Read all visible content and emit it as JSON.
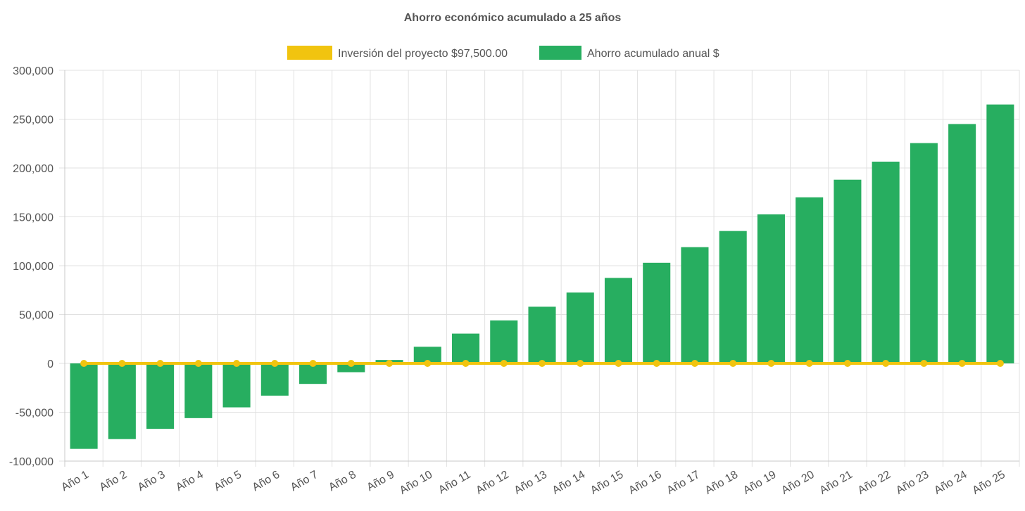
{
  "chart_data": {
    "type": "bar",
    "title": "Ahorro económico acumulado a 25 años",
    "categories": [
      "Año 1",
      "Año 2",
      "Año 3",
      "Año 4",
      "Año 5",
      "Año 6",
      "Año 7",
      "Año 8",
      "Año 9",
      "Año 10",
      "Año 11",
      "Año 12",
      "Año 13",
      "Año 14",
      "Año 15",
      "Año 16",
      "Año 17",
      "Año 18",
      "Año 19",
      "Año 20",
      "Año 21",
      "Año 22",
      "Año 23",
      "Año 24",
      "Año 25"
    ],
    "series": [
      {
        "name": "Inversión del proyecto $97,500.00",
        "kind": "line",
        "color": "#f1c40f",
        "values": [
          0,
          0,
          0,
          0,
          0,
          0,
          0,
          0,
          0,
          0,
          0,
          0,
          0,
          0,
          0,
          0,
          0,
          0,
          0,
          0,
          0,
          0,
          0,
          0,
          0
        ]
      },
      {
        "name": "Ahorro acumulado anual $",
        "kind": "bar",
        "color": "#27ae60",
        "values": [
          -87500,
          -77500,
          -67000,
          -56000,
          -45000,
          -33000,
          -21000,
          -9000,
          3500,
          17000,
          30500,
          44000,
          58000,
          72500,
          87500,
          103000,
          119000,
          135500,
          152500,
          170000,
          188000,
          206500,
          225500,
          245000,
          265000
        ]
      }
    ],
    "ylim": [
      -100000,
      300000
    ],
    "yticks": [
      "300,000",
      "250,000",
      "200,000",
      "150,000",
      "100,000",
      "50,000",
      "0",
      "-50,000",
      "-100,000"
    ],
    "ytick_values": [
      300000,
      250000,
      200000,
      150000,
      100000,
      50000,
      0,
      -50000,
      -100000
    ],
    "legend": "top-center",
    "grid": true
  }
}
